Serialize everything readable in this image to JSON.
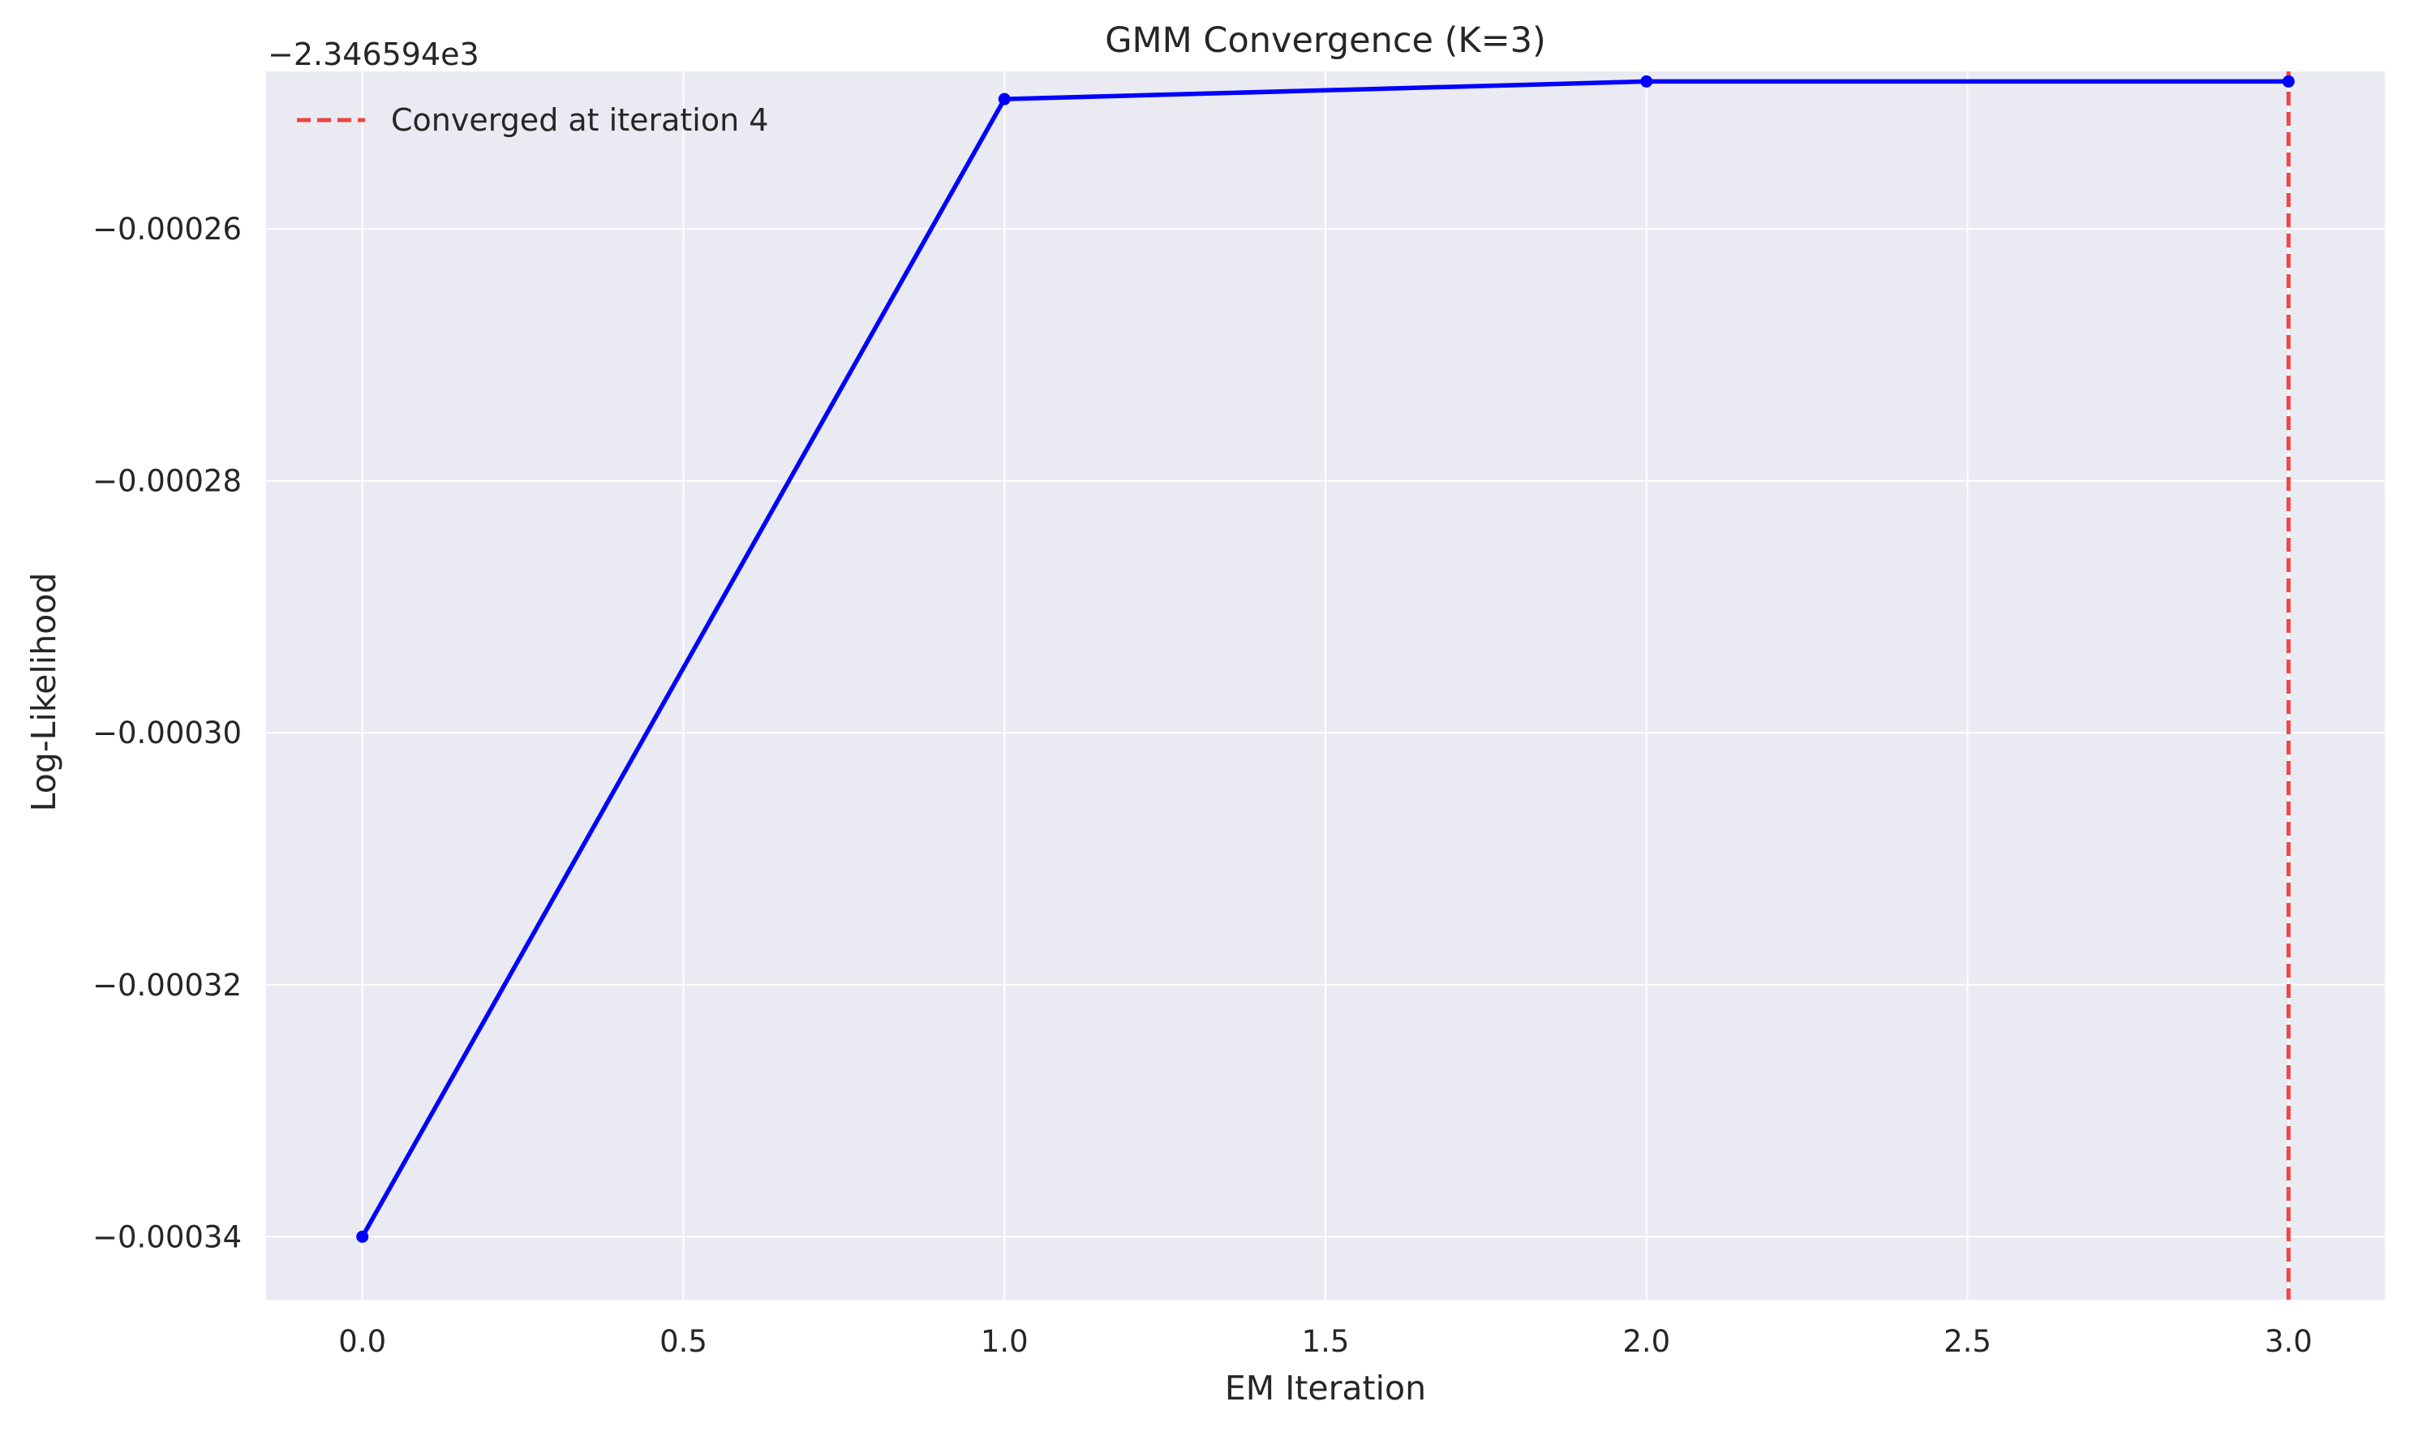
{
  "chart_data": {
    "type": "line",
    "title": "GMM Convergence (K=3)",
    "xlabel": "EM Iteration",
    "ylabel": "Log-Likelihood",
    "offset_label": "−2.346594e3",
    "xlim": [
      -0.15,
      3.15
    ],
    "ylim": [
      -0.000345,
      -0.0002475
    ],
    "x_ticks": [
      {
        "value": 0.0,
        "label": "0.0"
      },
      {
        "value": 0.5,
        "label": "0.5"
      },
      {
        "value": 1.0,
        "label": "1.0"
      },
      {
        "value": 1.5,
        "label": "1.5"
      },
      {
        "value": 2.0,
        "label": "2.0"
      },
      {
        "value": 2.5,
        "label": "2.5"
      },
      {
        "value": 3.0,
        "label": "3.0"
      }
    ],
    "y_ticks": [
      {
        "value": -0.00026,
        "label": "−0.00026"
      },
      {
        "value": -0.00028,
        "label": "−0.00028"
      },
      {
        "value": -0.0003,
        "label": "−0.00030"
      },
      {
        "value": -0.00032,
        "label": "−0.00032"
      },
      {
        "value": -0.00034,
        "label": "−0.00034"
      }
    ],
    "series": [
      {
        "x": [
          0,
          1,
          2,
          3
        ],
        "values": [
          -0.00034,
          -0.0002497,
          -0.0002483,
          -0.0002483
        ],
        "color": "#0000ff"
      }
    ],
    "converged_line": {
      "x": 3.0,
      "label": "Converged at iteration 4",
      "color": "#ee3333"
    },
    "grid": true,
    "legend_position": "upper-left",
    "colors": {
      "plot_background": "#eaeaf2",
      "grid": "#ffffff",
      "text": "#262626"
    }
  }
}
